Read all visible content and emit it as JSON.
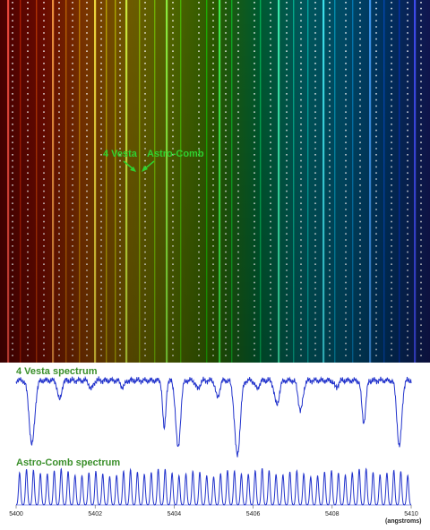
{
  "colors": {
    "spectrum_stops": [
      "#4a0000",
      "#6a0a00",
      "#7a3500",
      "#6e5a00",
      "#4f6400",
      "#2a5a00",
      "#005a2e",
      "#00585a",
      "#004a66",
      "#00305f",
      "#101550"
    ],
    "line_color": "#2233cc",
    "label_green": "#2fd12f",
    "title_green": "#3a8f2a"
  },
  "annotations": {
    "vesta_label": "4 Vesta",
    "comb_label": "Astro-Comb"
  },
  "chart_data": [
    {
      "type": "line",
      "title": "4 Vesta spectrum",
      "x_range": [
        5400,
        5410
      ],
      "absorption_lines": [
        {
          "center": 5400.4,
          "depth": 0.92,
          "width": 0.07
        },
        {
          "center": 5401.1,
          "depth": 0.28,
          "width": 0.05
        },
        {
          "center": 5401.9,
          "depth": 0.12,
          "width": 0.05
        },
        {
          "center": 5402.7,
          "depth": 0.1,
          "width": 0.05
        },
        {
          "center": 5403.75,
          "depth": 0.7,
          "width": 0.04
        },
        {
          "center": 5404.1,
          "depth": 0.97,
          "width": 0.06
        },
        {
          "center": 5404.6,
          "depth": 0.12,
          "width": 0.05
        },
        {
          "center": 5405.1,
          "depth": 0.25,
          "width": 0.05
        },
        {
          "center": 5405.6,
          "depth": 1.08,
          "width": 0.07
        },
        {
          "center": 5406.1,
          "depth": 0.12,
          "width": 0.05
        },
        {
          "center": 5406.6,
          "depth": 0.35,
          "width": 0.06
        },
        {
          "center": 5407.2,
          "depth": 0.43,
          "width": 0.06
        },
        {
          "center": 5408.1,
          "depth": 0.1,
          "width": 0.05
        },
        {
          "center": 5408.8,
          "depth": 0.6,
          "width": 0.05
        },
        {
          "center": 5409.7,
          "depth": 0.95,
          "width": 0.06
        }
      ]
    },
    {
      "type": "line",
      "title": "Astro-Comb spectrum",
      "x_range": [
        5400,
        5410
      ],
      "comb_teeth": 57,
      "x_ticks": [
        "5400",
        "5402",
        "5404",
        "5406",
        "5408",
        "5410"
      ],
      "x_unit": "(angstroms)"
    }
  ]
}
